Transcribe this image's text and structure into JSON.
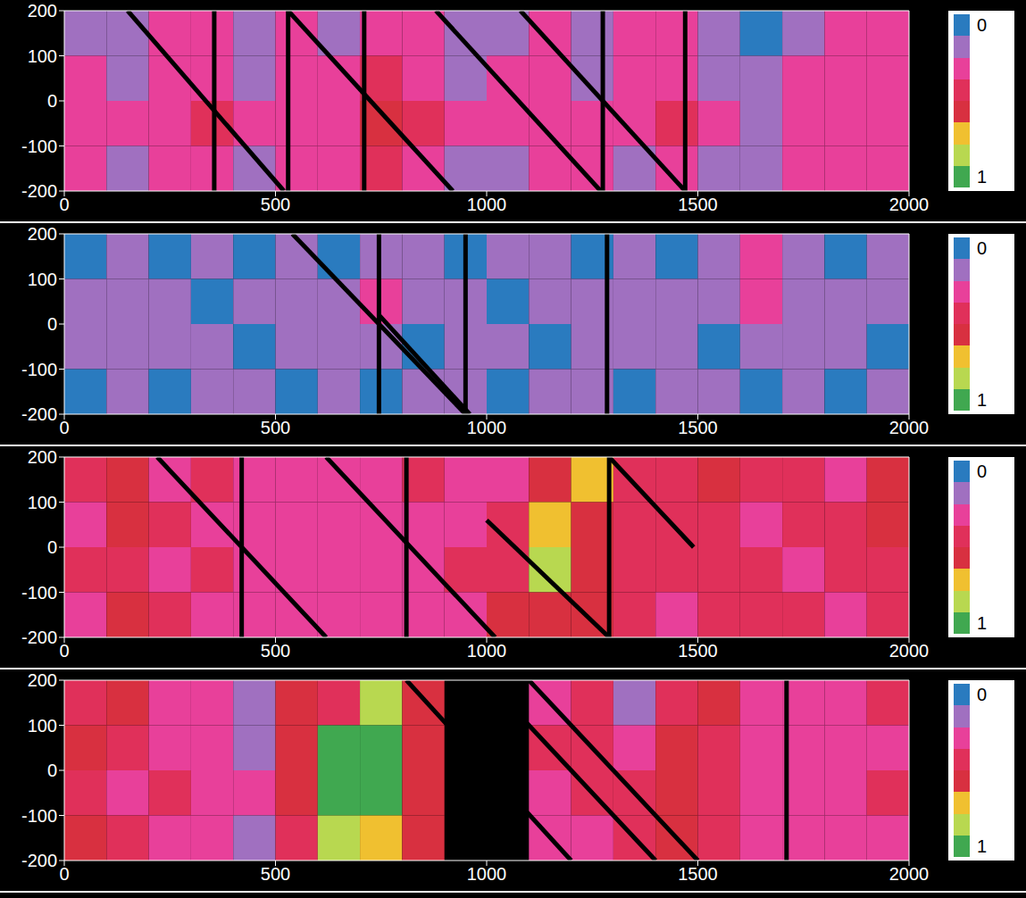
{
  "chart_data": [
    {
      "type": "heatmap",
      "xlim": [
        0,
        2000
      ],
      "xticks": [
        0,
        500,
        1000,
        1500,
        2000
      ],
      "ylim": [
        -200,
        200
      ],
      "yticks": [
        -200,
        -100,
        0,
        100,
        200
      ],
      "x_bins": [
        0,
        100,
        200,
        300,
        400,
        500,
        600,
        700,
        800,
        900,
        1000,
        1100,
        1200,
        1300,
        1400,
        1500,
        1600,
        1700,
        1800,
        1900,
        2000
      ],
      "y_bins": [
        200,
        100,
        0,
        -100,
        -200
      ],
      "cells": [
        [
          0.2,
          0.15,
          0.3,
          0.25,
          0.2,
          0.3,
          0.15,
          0.3,
          0.25,
          0.2,
          0.15,
          0.3,
          0.2,
          0.25,
          0.3,
          0.15,
          0.1,
          0.2,
          0.3,
          0.25
        ],
        [
          0.3,
          0.2,
          0.25,
          0.3,
          0.2,
          0.25,
          0.3,
          0.45,
          0.3,
          0.2,
          0.25,
          0.3,
          0.2,
          0.3,
          0.25,
          0.2,
          0.15,
          0.25,
          0.3,
          0.3
        ],
        [
          0.3,
          0.25,
          0.3,
          0.4,
          0.25,
          0.3,
          0.35,
          0.55,
          0.4,
          0.25,
          0.3,
          0.35,
          0.3,
          0.3,
          0.45,
          0.25,
          0.2,
          0.3,
          0.3,
          0.25
        ],
        [
          0.25,
          0.2,
          0.3,
          0.3,
          0.2,
          0.25,
          0.3,
          0.45,
          0.35,
          0.2,
          0.2,
          0.3,
          0.25,
          0.2,
          0.3,
          0.15,
          0.2,
          0.25,
          0.3,
          0.3
        ]
      ],
      "lines": [
        [
          355,
          200,
          355,
          -200
        ],
        [
          710,
          200,
          710,
          -200
        ],
        [
          1275,
          200,
          1275,
          -200
        ],
        [
          530,
          200,
          530,
          -200
        ],
        [
          1470,
          200,
          1470,
          -200
        ],
        [
          150,
          200,
          520,
          -200
        ],
        [
          530,
          200,
          920,
          -200
        ],
        [
          880,
          200,
          1270,
          -200
        ],
        [
          1080,
          200,
          1470,
          -200
        ]
      ],
      "colorbar": {
        "range": [
          0,
          1
        ],
        "ticks": [
          0,
          1
        ],
        "colors": [
          "#2a7bbf",
          "#a070c0",
          "#e8409a",
          "#e0305a",
          "#d83040",
          "#f0c030",
          "#b8d850",
          "#40a850"
        ]
      }
    },
    {
      "type": "heatmap",
      "xlim": [
        0,
        2000
      ],
      "xticks": [
        0,
        500,
        1000,
        1500,
        2000
      ],
      "ylim": [
        -200,
        200
      ],
      "yticks": [
        -200,
        -100,
        0,
        100,
        200
      ],
      "x_bins": [
        0,
        100,
        200,
        300,
        400,
        500,
        600,
        700,
        800,
        900,
        1000,
        1100,
        1200,
        1300,
        1400,
        1500,
        1600,
        1700,
        1800,
        1900,
        2000
      ],
      "y_bins": [
        200,
        100,
        0,
        -100,
        -200
      ],
      "cells": [
        [
          0.1,
          0.15,
          0.1,
          0.2,
          0.1,
          0.15,
          0.1,
          0.2,
          0.15,
          0.1,
          0.15,
          0.2,
          0.1,
          0.15,
          0.1,
          0.2,
          0.25,
          0.15,
          0.1,
          0.15
        ],
        [
          0.15,
          0.2,
          0.15,
          0.1,
          0.2,
          0.15,
          0.2,
          0.25,
          0.15,
          0.2,
          0.1,
          0.15,
          0.2,
          0.15,
          0.2,
          0.15,
          0.25,
          0.2,
          0.15,
          0.2
        ],
        [
          0.2,
          0.15,
          0.2,
          0.15,
          0.1,
          0.2,
          0.15,
          0.2,
          0.1,
          0.15,
          0.2,
          0.1,
          0.15,
          0.2,
          0.15,
          0.1,
          0.2,
          0.15,
          0.2,
          0.1
        ],
        [
          0.1,
          0.15,
          0.1,
          0.15,
          0.2,
          0.1,
          0.15,
          0.1,
          0.2,
          0.15,
          0.1,
          0.2,
          0.15,
          0.1,
          0.15,
          0.2,
          0.1,
          0.15,
          0.1,
          0.15
        ]
      ],
      "lines": [
        [
          745,
          200,
          745,
          -200
        ],
        [
          1285,
          200,
          1285,
          -200
        ],
        [
          950,
          200,
          950,
          -200
        ],
        [
          540,
          200,
          950,
          -200
        ],
        [
          745,
          20,
          960,
          -200
        ]
      ],
      "colorbar": {
        "range": [
          0,
          1
        ],
        "ticks": [
          0,
          1
        ],
        "colors": [
          "#2a7bbf",
          "#a070c0",
          "#e8409a",
          "#e0305a",
          "#d83040",
          "#f0c030",
          "#b8d850",
          "#40a850"
        ]
      }
    },
    {
      "type": "heatmap",
      "xlim": [
        0,
        2000
      ],
      "xticks": [
        0,
        500,
        1000,
        1500,
        2000
      ],
      "ylim": [
        -200,
        200
      ],
      "yticks": [
        -200,
        -100,
        0,
        100,
        200
      ],
      "x_bins": [
        0,
        100,
        200,
        300,
        400,
        500,
        600,
        700,
        800,
        900,
        1000,
        1100,
        1200,
        1300,
        1400,
        1500,
        1600,
        1700,
        1800,
        1900,
        2000
      ],
      "y_bins": [
        200,
        100,
        0,
        -100,
        -200
      ],
      "cells": [
        [
          0.4,
          0.55,
          0.35,
          0.45,
          0.3,
          0.35,
          0.3,
          0.35,
          0.4,
          0.3,
          0.35,
          0.6,
          0.65,
          0.45,
          0.4,
          0.5,
          0.45,
          0.4,
          0.35,
          0.55
        ],
        [
          0.35,
          0.5,
          0.4,
          0.35,
          0.3,
          0.3,
          0.35,
          0.3,
          0.35,
          0.35,
          0.4,
          0.7,
          0.6,
          0.4,
          0.45,
          0.4,
          0.35,
          0.45,
          0.4,
          0.5
        ],
        [
          0.4,
          0.45,
          0.35,
          0.4,
          0.35,
          0.3,
          0.3,
          0.35,
          0.3,
          0.4,
          0.45,
          0.75,
          0.55,
          0.45,
          0.4,
          0.45,
          0.4,
          0.35,
          0.45,
          0.4
        ],
        [
          0.35,
          0.5,
          0.4,
          0.3,
          0.35,
          0.35,
          0.3,
          0.3,
          0.35,
          0.3,
          0.5,
          0.6,
          0.5,
          0.4,
          0.35,
          0.4,
          0.45,
          0.4,
          0.35,
          0.45
        ]
      ],
      "lines": [
        [
          420,
          200,
          420,
          -200
        ],
        [
          810,
          200,
          810,
          -200
        ],
        [
          1290,
          200,
          1290,
          -200
        ],
        [
          220,
          200,
          620,
          -200
        ],
        [
          620,
          200,
          1020,
          -200
        ],
        [
          1000,
          60,
          1290,
          -200
        ],
        [
          1290,
          200,
          1490,
          0
        ]
      ],
      "colorbar": {
        "range": [
          0,
          1
        ],
        "ticks": [
          0,
          1
        ],
        "colors": [
          "#2a7bbf",
          "#a070c0",
          "#e8409a",
          "#e0305a",
          "#d83040",
          "#f0c030",
          "#b8d850",
          "#40a850"
        ]
      }
    },
    {
      "type": "heatmap",
      "xlim": [
        0,
        2000
      ],
      "xticks": [
        0,
        500,
        1000,
        1500,
        2000
      ],
      "ylim": [
        -200,
        200
      ],
      "yticks": [
        -200,
        -100,
        0,
        100,
        200
      ],
      "x_bins": [
        0,
        100,
        200,
        300,
        400,
        500,
        600,
        700,
        800,
        900,
        1000,
        1100,
        1200,
        1300,
        1400,
        1500,
        1600,
        1700,
        1800,
        1900,
        2000
      ],
      "y_bins": [
        200,
        100,
        0,
        -100,
        -200
      ],
      "cells": [
        [
          0.4,
          0.5,
          0.3,
          0.25,
          0.2,
          0.55,
          0.4,
          0.85,
          0.5,
          null,
          null,
          0.3,
          0.4,
          0.2,
          0.45,
          0.5,
          0.35,
          0.3,
          0.35,
          0.4
        ],
        [
          0.5,
          0.4,
          0.35,
          0.3,
          0.2,
          0.5,
          0.9,
          0.9,
          0.6,
          null,
          null,
          0.4,
          0.45,
          0.3,
          0.6,
          0.45,
          0.3,
          0.35,
          0.3,
          0.35
        ],
        [
          0.45,
          0.35,
          0.4,
          0.35,
          0.25,
          0.5,
          0.95,
          0.9,
          0.55,
          null,
          null,
          0.35,
          0.4,
          0.45,
          0.55,
          0.4,
          0.35,
          0.3,
          0.35,
          0.4
        ],
        [
          0.5,
          0.4,
          0.35,
          0.3,
          0.2,
          0.45,
          0.8,
          0.7,
          0.5,
          null,
          null,
          0.3,
          0.35,
          0.4,
          0.5,
          0.45,
          0.3,
          0.35,
          0.3,
          0.35
        ]
      ],
      "lines": [
        [
          1710,
          200,
          1710,
          -200
        ],
        [
          810,
          200,
          1200,
          -200
        ],
        [
          1000,
          200,
          1400,
          -200
        ],
        [
          1100,
          200,
          1500,
          -200
        ]
      ],
      "colorbar": {
        "range": [
          0,
          1
        ],
        "ticks": [
          0,
          1
        ],
        "colors": [
          "#2a7bbf",
          "#a070c0",
          "#e8409a",
          "#e0305a",
          "#d83040",
          "#f0c030",
          "#b8d850",
          "#40a850"
        ]
      }
    }
  ]
}
